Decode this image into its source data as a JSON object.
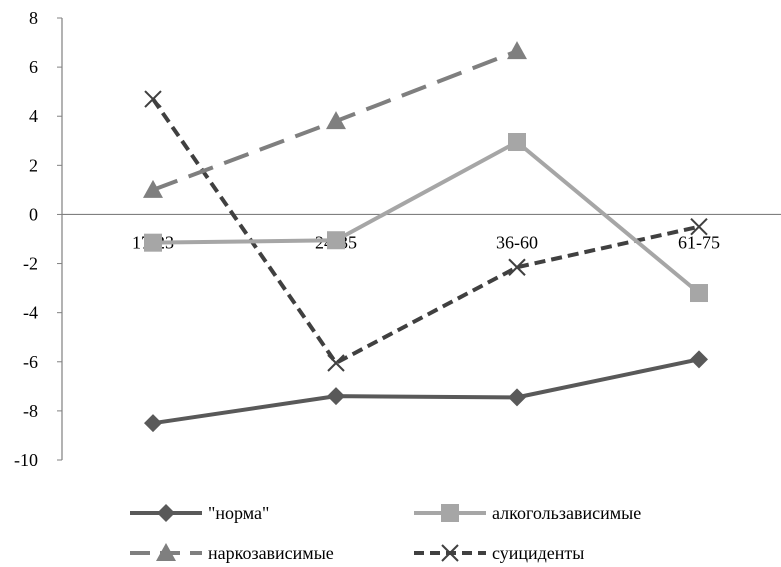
{
  "chart_data": {
    "type": "line",
    "title": "",
    "xlabel": "",
    "ylabel": "",
    "categories": [
      "17-23",
      "24-35",
      "36-60",
      "61-75"
    ],
    "y_ticks": [
      "8",
      "6",
      "4",
      "2",
      "0",
      "-2",
      "-4",
      "-6",
      "-8",
      "-10"
    ],
    "ylim": [
      -10,
      8
    ],
    "grid": false,
    "legend_position": "bottom",
    "series": [
      {
        "name": "\"норма\"",
        "values": [
          -8.5,
          -7.4,
          -7.45,
          -5.9
        ],
        "color": "#595959",
        "dash": "solid",
        "marker": "diamond"
      },
      {
        "name": "алкогользависимые",
        "values": [
          -1.15,
          -1.05,
          2.95,
          -3.2
        ],
        "color": "#a6a6a6",
        "dash": "solid",
        "marker": "square"
      },
      {
        "name": "наркозависимые",
        "values": [
          1.0,
          3.8,
          6.65,
          null
        ],
        "color": "#7f7f7f",
        "dash": "longdash",
        "marker": "triangle"
      },
      {
        "name": "суициденты",
        "values": [
          4.7,
          -6.05,
          -2.15,
          -0.5
        ],
        "color": "#404040",
        "dash": "shortdash",
        "marker": "x"
      }
    ]
  }
}
